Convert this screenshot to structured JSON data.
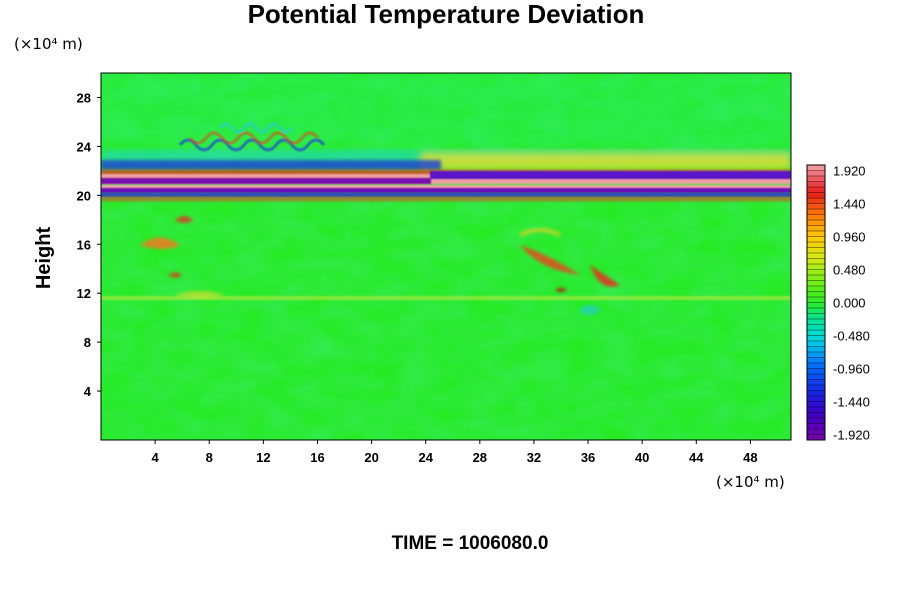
{
  "chart_data": {
    "type": "heatmap",
    "title": "Potential Temperature Deviation",
    "ylabel": "Height",
    "xlabel": "",
    "x_unit": "(×10⁴ m)",
    "y_unit": "(×10⁴ m)",
    "xlim": [
      0,
      51
    ],
    "ylim": [
      0,
      30
    ],
    "x_ticks": [
      4,
      8,
      12,
      16,
      20,
      24,
      28,
      32,
      36,
      40,
      44,
      48
    ],
    "y_ticks": [
      4,
      8,
      12,
      16,
      20,
      24,
      28
    ],
    "colorbar": {
      "min": -2.0,
      "max": 2.0,
      "step": 0.08,
      "labels": [
        "1.920",
        "1.440",
        "0.960",
        "0.480",
        "0.000",
        "-0.480",
        "-0.960",
        "-1.440",
        "-1.920"
      ],
      "label_values": [
        1.92,
        1.44,
        0.96,
        0.48,
        0.0,
        -0.48,
        -0.96,
        -1.44,
        -1.92
      ]
    },
    "footer": "TIME = 1006080.0",
    "grid": false,
    "legend_placement": "right"
  }
}
